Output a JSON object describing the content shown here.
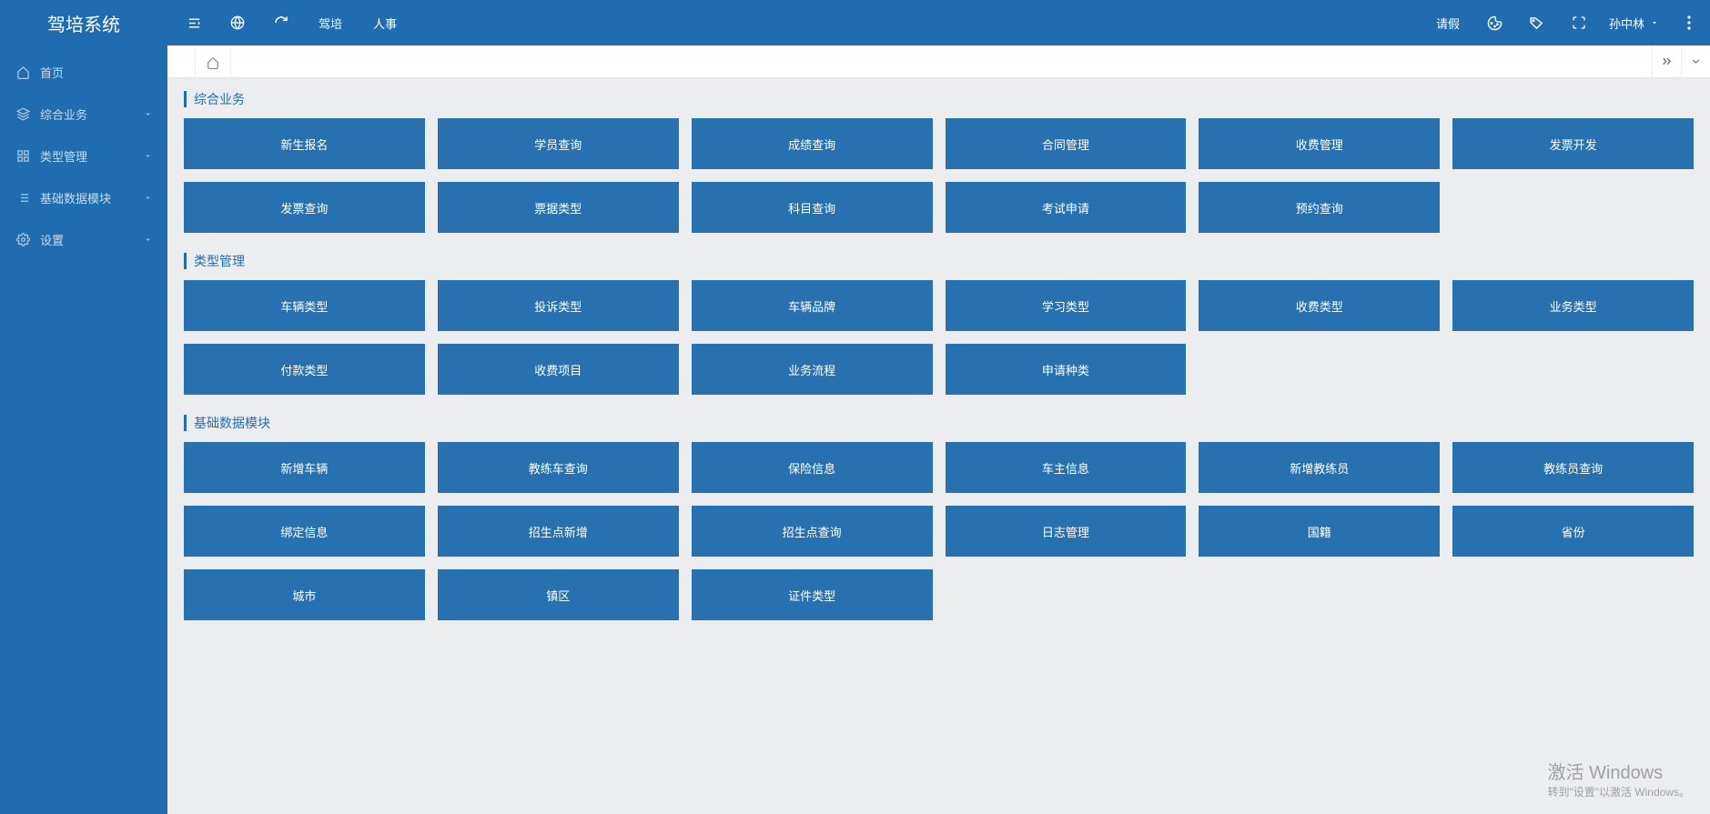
{
  "app": {
    "title": "驾培系统"
  },
  "sidebar": {
    "items": [
      {
        "icon": "home-icon",
        "label": "首页",
        "expandable": false
      },
      {
        "icon": "layers-icon",
        "label": "综合业务",
        "expandable": true
      },
      {
        "icon": "grid-icon",
        "label": "类型管理",
        "expandable": true
      },
      {
        "icon": "list-icon",
        "label": "基础数据模块",
        "expandable": true
      },
      {
        "icon": "gear-icon",
        "label": "设置",
        "expandable": true
      }
    ]
  },
  "topbar": {
    "left_text_links": [
      "驾培",
      "人事"
    ],
    "leave_label": "请假",
    "user_name": "孙中林"
  },
  "sections": [
    {
      "title": "综合业务",
      "tiles": [
        "新生报名",
        "学员查询",
        "成绩查询",
        "合同管理",
        "收费管理",
        "发票开发",
        "发票查询",
        "票据类型",
        "科目查询",
        "考试申请",
        "预约查询"
      ]
    },
    {
      "title": "类型管理",
      "tiles": [
        "车辆类型",
        "投诉类型",
        "车辆品牌",
        "学习类型",
        "收费类型",
        "业务类型",
        "付款类型",
        "收费项目",
        "业务流程",
        "申请种类"
      ]
    },
    {
      "title": "基础数据模块",
      "tiles": [
        "新增车辆",
        "教练车查询",
        "保险信息",
        "车主信息",
        "新增教练员",
        "教练员查询",
        "绑定信息",
        "招生点新增",
        "招生点查询",
        "日志管理",
        "国籍",
        "省份",
        "城市",
        "镇区",
        "证件类型"
      ]
    }
  ],
  "watermark": {
    "title": "激活 Windows",
    "sub": "转到\"设置\"以激活 Windows。"
  },
  "colors": {
    "primary": "#1f6cb0",
    "tile": "#2771b0",
    "content_bg": "#ecedef",
    "accent_text": "#1d6eb6"
  }
}
